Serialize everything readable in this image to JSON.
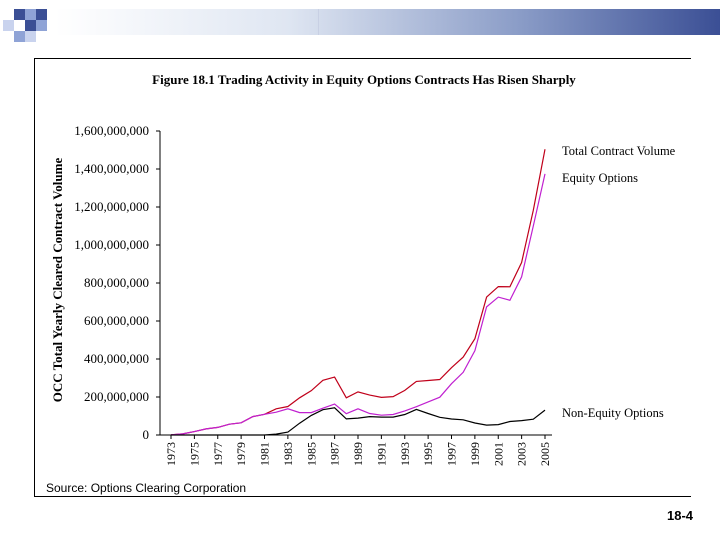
{
  "slide": {
    "page_number": "18-4",
    "source": "Source: Options Clearing Corporation"
  },
  "colors": {
    "total": "#c0001a",
    "equity": "#c020d0",
    "non_equity": "#000000",
    "accent_dark": "#3b4f95",
    "accent_light": "#8fa3d6"
  },
  "chart_data": {
    "type": "line",
    "title": "Figure 18.1  Trading Activity in Equity Options Contracts Has Risen Sharply",
    "xlabel": "",
    "ylabel": "OCC Total Yearly Cleared Contract Volume",
    "ylim": [
      0,
      1600000000
    ],
    "yticks": [
      0,
      200000000,
      400000000,
      600000000,
      800000000,
      1000000000,
      1200000000,
      1400000000,
      1600000000
    ],
    "ytick_labels": [
      "0",
      "200,000,000",
      "400,000,000",
      "600,000,000",
      "800,000,000",
      "1,000,000,000",
      "1,200,000,000",
      "1,400,000,000",
      "1,600,000,000"
    ],
    "x": [
      1973,
      1974,
      1975,
      1976,
      1977,
      1978,
      1979,
      1980,
      1981,
      1982,
      1983,
      1984,
      1985,
      1986,
      1987,
      1988,
      1989,
      1990,
      1991,
      1992,
      1993,
      1994,
      1995,
      1996,
      1997,
      1998,
      1999,
      2000,
      2001,
      2002,
      2003,
      2004,
      2005
    ],
    "xtick_labels": [
      "1973",
      "1975",
      "1977",
      "1979",
      "1981",
      "1983",
      "1985",
      "1987",
      "1989",
      "1991",
      "1993",
      "1995",
      "1997",
      "1999",
      "2001",
      "2003",
      "2005"
    ],
    "series": [
      {
        "name": "Total Contract Volume",
        "color": "#c0001a",
        "values": [
          1000000,
          6000000,
          18000000,
          32000000,
          40000000,
          57000000,
          64000000,
          97000000,
          109000000,
          138000000,
          150000000,
          196000000,
          233000000,
          288000000,
          305000000,
          196000000,
          227000000,
          210000000,
          198000000,
          202000000,
          235000000,
          282000000,
          287000000,
          292000000,
          354000000,
          410000000,
          507000000,
          726000000,
          781000000,
          780000000,
          908000000,
          1183000000,
          1504000000
        ]
      },
      {
        "name": "Equity Options",
        "color": "#c020d0",
        "values": [
          1000000,
          6000000,
          18000000,
          32000000,
          40000000,
          57000000,
          64000000,
          97000000,
          109000000,
          120000000,
          138000000,
          118000000,
          118000000,
          141000000,
          163000000,
          112000000,
          138000000,
          113000000,
          104000000,
          108000000,
          127000000,
          149000000,
          174000000,
          199000000,
          270000000,
          330000000,
          444000000,
          674000000,
          726000000,
          709000000,
          832000000,
          1100000000,
          1374000000
        ]
      },
      {
        "name": "Non-Equity Options",
        "color": "#000000",
        "values": [
          0,
          0,
          0,
          0,
          0,
          0,
          0,
          0,
          0,
          5000000,
          15000000,
          62000000,
          103000000,
          133000000,
          143000000,
          85000000,
          89000000,
          97000000,
          94000000,
          94000000,
          108000000,
          135000000,
          113000000,
          93000000,
          84000000,
          80000000,
          63000000,
          52000000,
          55000000,
          71000000,
          76000000,
          83000000,
          131000000
        ]
      }
    ],
    "legend": "right, at line ends"
  }
}
